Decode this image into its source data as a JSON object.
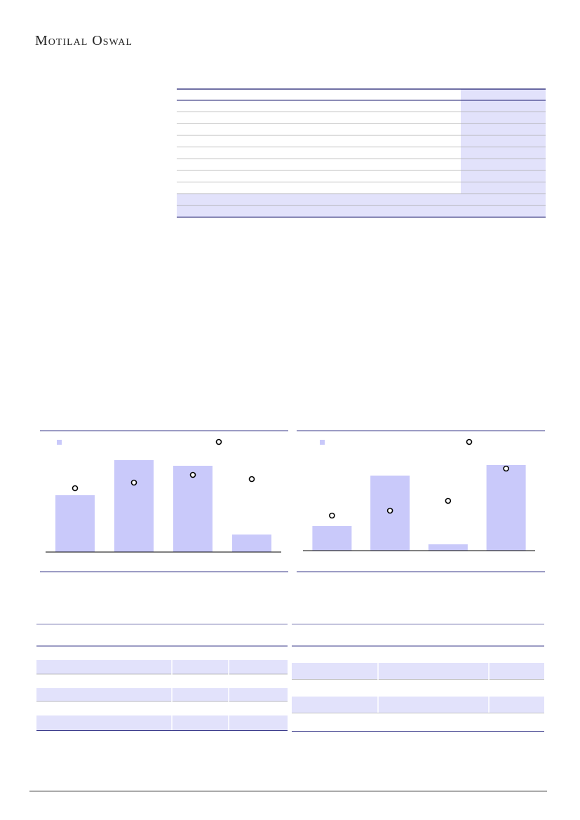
{
  "header": {
    "brand": "Motilal Oswal"
  },
  "charts": [
    {
      "type": "bar",
      "values": [
        81,
        131,
        123,
        25
      ],
      "marker_values": [
        91,
        99,
        110,
        104
      ],
      "color": "#c9c9fa",
      "ylim": [
        0,
        160
      ]
    },
    {
      "type": "bar",
      "values": [
        35,
        107,
        9,
        122
      ],
      "marker_values": [
        50,
        57,
        71,
        117
      ],
      "color": "#c9c9fa",
      "ylim": [
        0,
        160
      ]
    }
  ]
}
